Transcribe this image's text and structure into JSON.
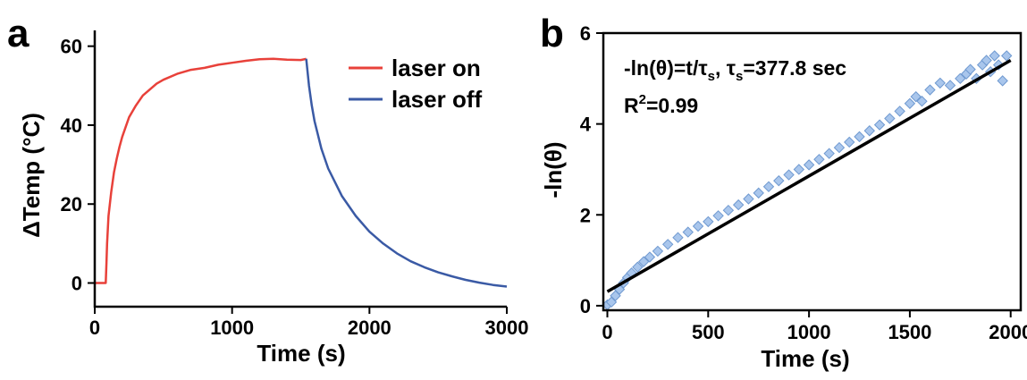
{
  "chart_data": [
    {
      "panel": "a",
      "type": "line",
      "title": "",
      "xlabel": "Time (s)",
      "ylabel": "ΔTemp (°C)",
      "xlim": [
        0,
        3000
      ],
      "ylim": [
        -6,
        64
      ],
      "xticks": [
        0,
        1000,
        2000,
        3000
      ],
      "yticks": [
        0,
        20,
        40,
        60
      ],
      "legend_position": "top-right",
      "grid": false,
      "series": [
        {
          "name": "laser on",
          "color": "#e8413a",
          "x": [
            0,
            80,
            85,
            90,
            100,
            120,
            140,
            160,
            180,
            200,
            250,
            300,
            350,
            400,
            450,
            500,
            600,
            700,
            800,
            900,
            1000,
            1100,
            1200,
            1300,
            1400,
            1500,
            1540
          ],
          "y": [
            0,
            0,
            5,
            10,
            17,
            23,
            28,
            31.5,
            34.5,
            37,
            42,
            45,
            47.5,
            49,
            50.5,
            51.5,
            53,
            54,
            54.5,
            55.3,
            55.8,
            56.3,
            56.7,
            56.8,
            56.6,
            56.5,
            56.8
          ]
        },
        {
          "name": "laser off",
          "color": "#3a5aa5",
          "x": [
            1540,
            1560,
            1580,
            1600,
            1650,
            1700,
            1800,
            1900,
            2000,
            2100,
            2200,
            2300,
            2400,
            2500,
            2600,
            2700,
            2800,
            2900,
            3000
          ],
          "y": [
            56.8,
            50,
            45,
            41,
            34,
            29,
            22,
            17,
            13,
            10,
            7.5,
            5.5,
            4,
            2.7,
            1.7,
            0.8,
            0.1,
            -0.5,
            -0.9
          ]
        }
      ]
    },
    {
      "panel": "b",
      "type": "scatter",
      "title": "",
      "xlabel": "Time (s)",
      "ylabel": "-ln(θ)",
      "xlim": [
        -20,
        2050
      ],
      "ylim": [
        -0.1,
        6
      ],
      "xticks": [
        0,
        500,
        1000,
        1500,
        2000
      ],
      "yticks": [
        0,
        2,
        4,
        6
      ],
      "grid": false,
      "annotation": {
        "equation_prefix": "-ln(θ)=t/τ",
        "equation_sub_1": "s",
        "equation_middle": ", τ",
        "equation_sub_2": "s",
        "equation_suffix": "=377.8 sec",
        "r2_prefix": "R",
        "r2_sup": "2",
        "r2_suffix": "=0.99"
      },
      "series": [
        {
          "marker": "diamond",
          "color": "#a9c6ec",
          "edge_color": "#6f99d0",
          "x": [
            0,
            20,
            40,
            60,
            80,
            100,
            120,
            150,
            180,
            210,
            250,
            300,
            350,
            400,
            450,
            500,
            550,
            600,
            650,
            700,
            750,
            800,
            850,
            900,
            950,
            1000,
            1050,
            1100,
            1150,
            1200,
            1250,
            1300,
            1350,
            1400,
            1450,
            1500,
            1530,
            1560,
            1600,
            1650,
            1700,
            1750,
            1780,
            1800,
            1830,
            1860,
            1880,
            1900,
            1920,
            1940,
            1960,
            1980
          ],
          "y": [
            0.02,
            0.08,
            0.22,
            0.36,
            0.5,
            0.62,
            0.72,
            0.85,
            0.97,
            1.07,
            1.2,
            1.35,
            1.5,
            1.62,
            1.75,
            1.85,
            1.98,
            2.1,
            2.22,
            2.35,
            2.48,
            2.62,
            2.75,
            2.88,
            3.0,
            3.1,
            3.22,
            3.35,
            3.48,
            3.6,
            3.72,
            3.85,
            3.98,
            4.12,
            4.28,
            4.45,
            4.6,
            4.5,
            4.75,
            4.9,
            4.85,
            5.0,
            5.1,
            5.2,
            5.0,
            5.3,
            5.4,
            5.15,
            5.5,
            5.3,
            4.95,
            5.5
          ]
        },
        {
          "name": "fit",
          "type": "line",
          "color": "#000000",
          "x": [
            0,
            2000
          ],
          "y": [
            0.31,
            5.4
          ]
        }
      ]
    }
  ]
}
